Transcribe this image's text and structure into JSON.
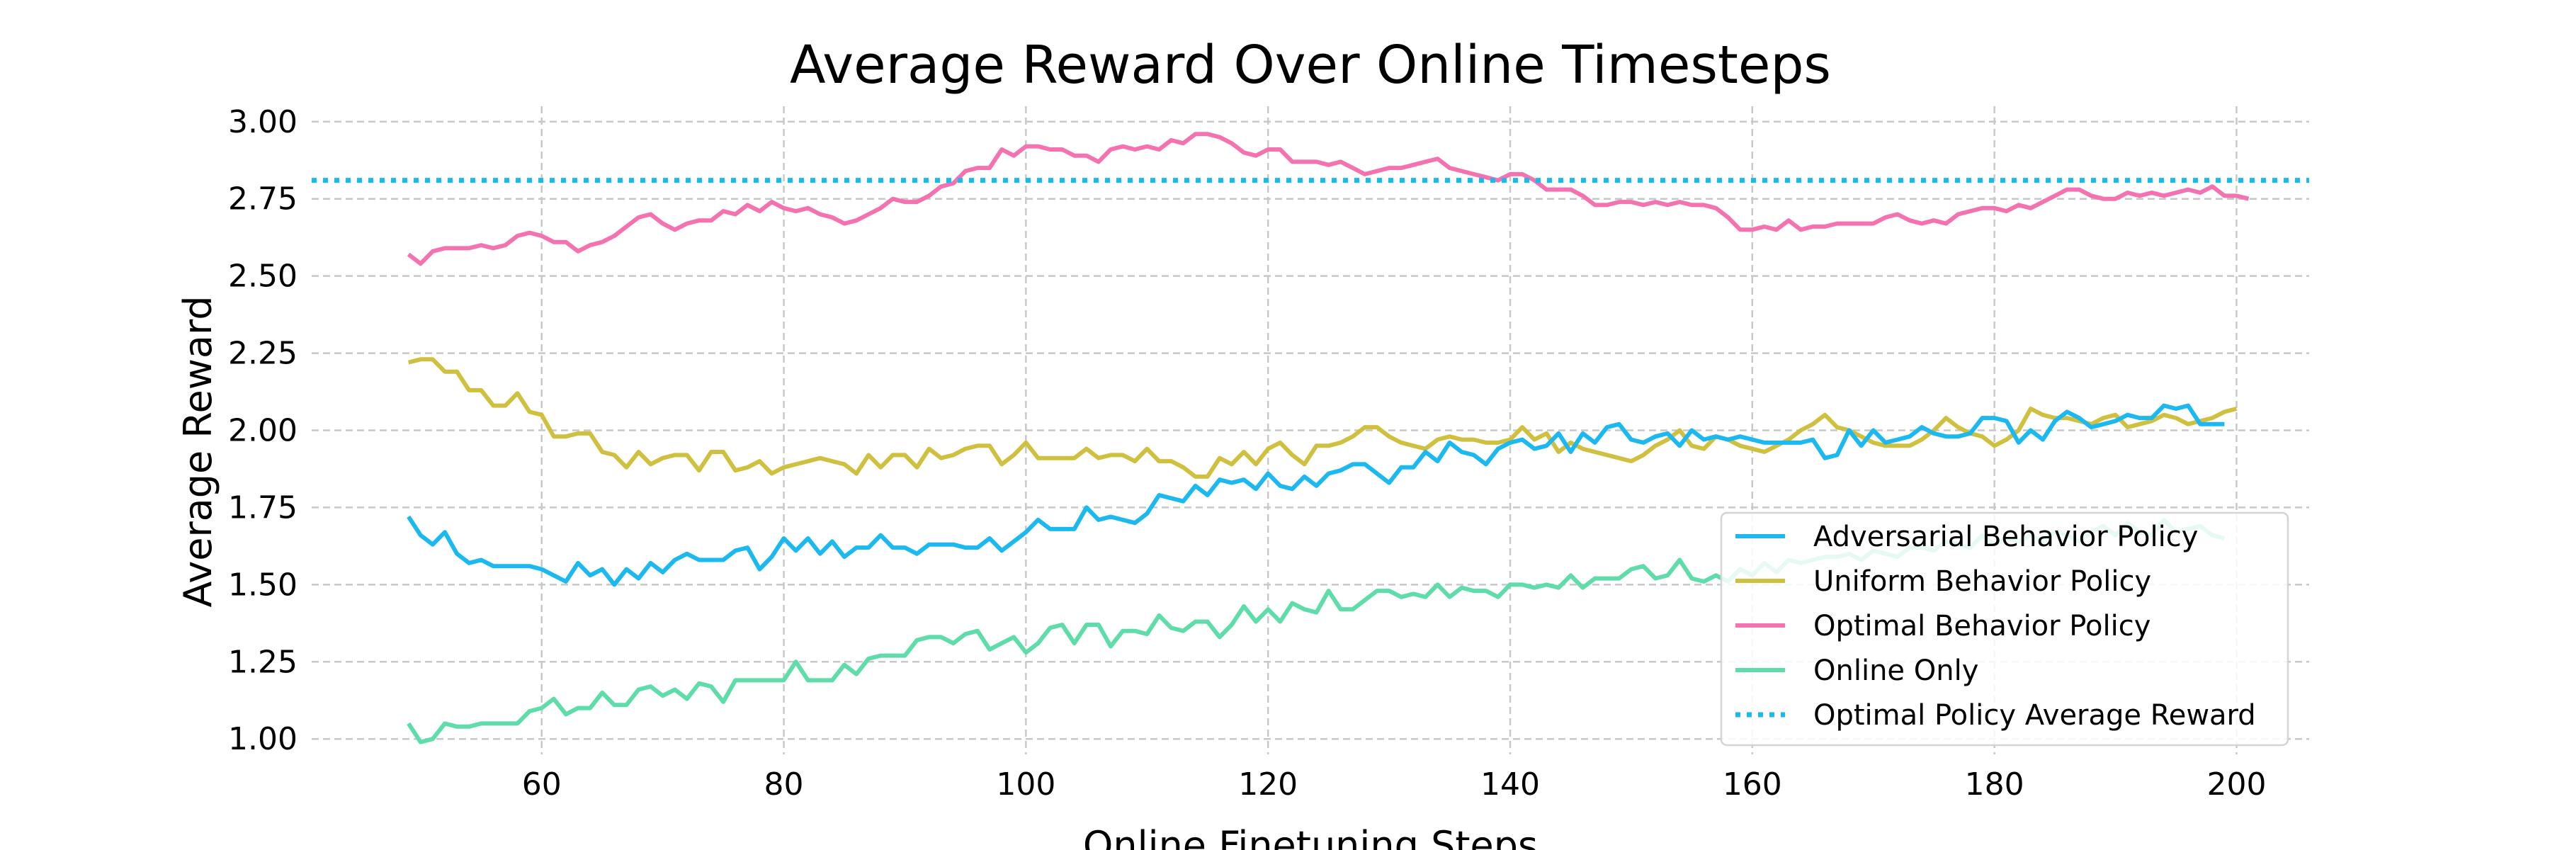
{
  "chart_data": {
    "type": "line",
    "title": "Average Reward Over Online Timesteps",
    "xlabel": "Online Finetuning Steps",
    "ylabel": "Average Reward",
    "xlim": [
      41,
      206
    ],
    "ylim": [
      0.95,
      3.05
    ],
    "xticks": [
      60,
      80,
      100,
      120,
      140,
      160,
      180,
      200
    ],
    "yticks": [
      1.0,
      1.25,
      1.5,
      1.75,
      2.0,
      2.25,
      2.5,
      2.75,
      3.0
    ],
    "ytick_labels": [
      "1.00",
      "1.25",
      "1.50",
      "1.75",
      "2.00",
      "2.25",
      "2.50",
      "2.75",
      "3.00"
    ],
    "grid": true,
    "legend_position": "lower-right",
    "x_start": 49,
    "x_step": 1,
    "series": [
      {
        "name": "Adversarial Behavior Policy",
        "color": "#1cb8f0",
        "style": "solid",
        "values": [
          1.72,
          1.66,
          1.63,
          1.67,
          1.6,
          1.57,
          1.58,
          1.56,
          1.56,
          1.56,
          1.56,
          1.55,
          1.53,
          1.51,
          1.57,
          1.53,
          1.55,
          1.5,
          1.55,
          1.52,
          1.57,
          1.54,
          1.58,
          1.6,
          1.58,
          1.58,
          1.58,
          1.61,
          1.62,
          1.55,
          1.59,
          1.65,
          1.61,
          1.65,
          1.6,
          1.64,
          1.59,
          1.62,
          1.62,
          1.66,
          1.62,
          1.62,
          1.6,
          1.63,
          1.63,
          1.63,
          1.62,
          1.62,
          1.65,
          1.61,
          1.64,
          1.67,
          1.71,
          1.68,
          1.68,
          1.68,
          1.75,
          1.71,
          1.72,
          1.71,
          1.7,
          1.73,
          1.79,
          1.78,
          1.77,
          1.82,
          1.79,
          1.84,
          1.83,
          1.84,
          1.81,
          1.86,
          1.82,
          1.81,
          1.85,
          1.82,
          1.86,
          1.87,
          1.89,
          1.89,
          1.86,
          1.83,
          1.88,
          1.88,
          1.93,
          1.9,
          1.96,
          1.93,
          1.92,
          1.89,
          1.94,
          1.96,
          1.97,
          1.94,
          1.95,
          1.99,
          1.93,
          1.99,
          1.96,
          2.01,
          2.02,
          1.97,
          1.96,
          1.98,
          1.99,
          1.95,
          2.0,
          1.97,
          1.98,
          1.97,
          1.98,
          1.97,
          1.96,
          1.96,
          1.96,
          1.96,
          1.97,
          1.91,
          1.92,
          2.0,
          1.95,
          2.0,
          1.96,
          1.97,
          1.98,
          2.01,
          1.99,
          1.98,
          1.98,
          1.99,
          2.04,
          2.04,
          2.03,
          1.96,
          2.0,
          1.97,
          2.03,
          2.06,
          2.04,
          2.01,
          2.02,
          2.03,
          2.05,
          2.04,
          2.04,
          2.08,
          2.07,
          2.08,
          2.02,
          2.02,
          2.02
        ]
      },
      {
        "name": "Uniform Behavior Policy",
        "color": "#d0c040",
        "style": "solid",
        "values": [
          2.22,
          2.23,
          2.23,
          2.19,
          2.19,
          2.13,
          2.13,
          2.08,
          2.08,
          2.12,
          2.06,
          2.05,
          1.98,
          1.98,
          1.99,
          1.99,
          1.93,
          1.92,
          1.88,
          1.93,
          1.89,
          1.91,
          1.92,
          1.92,
          1.87,
          1.93,
          1.93,
          1.87,
          1.88,
          1.9,
          1.86,
          1.88,
          1.89,
          1.9,
          1.91,
          1.9,
          1.89,
          1.86,
          1.92,
          1.88,
          1.92,
          1.92,
          1.88,
          1.94,
          1.91,
          1.92,
          1.94,
          1.95,
          1.95,
          1.89,
          1.92,
          1.96,
          1.91,
          1.91,
          1.91,
          1.91,
          1.94,
          1.91,
          1.92,
          1.92,
          1.9,
          1.94,
          1.9,
          1.9,
          1.88,
          1.85,
          1.85,
          1.91,
          1.89,
          1.93,
          1.89,
          1.94,
          1.96,
          1.92,
          1.89,
          1.95,
          1.95,
          1.96,
          1.98,
          2.01,
          2.01,
          1.98,
          1.96,
          1.95,
          1.94,
          1.97,
          1.98,
          1.97,
          1.97,
          1.96,
          1.96,
          1.97,
          2.01,
          1.97,
          1.99,
          1.93,
          1.96,
          1.94,
          1.93,
          1.92,
          1.91,
          1.9,
          1.92,
          1.95,
          1.97,
          2.0,
          1.95,
          1.94,
          1.98,
          1.97,
          1.95,
          1.94,
          1.93,
          1.95,
          1.97,
          2.0,
          2.02,
          2.05,
          2.01,
          2.0,
          1.98,
          1.96,
          1.95,
          1.95,
          1.95,
          1.97,
          2.0,
          2.04,
          2.01,
          1.99,
          1.98,
          1.95,
          1.97,
          2.0,
          2.07,
          2.05,
          2.04,
          2.04,
          2.03,
          2.02,
          2.04,
          2.05,
          2.01,
          2.02,
          2.03,
          2.05,
          2.04,
          2.02,
          2.03,
          2.04,
          2.06,
          2.07
        ]
      },
      {
        "name": "Optimal Behavior Policy",
        "color": "#f472b0",
        "style": "solid",
        "values": [
          2.57,
          2.54,
          2.58,
          2.59,
          2.59,
          2.59,
          2.6,
          2.59,
          2.6,
          2.63,
          2.64,
          2.63,
          2.61,
          2.61,
          2.58,
          2.6,
          2.61,
          2.63,
          2.66,
          2.69,
          2.7,
          2.67,
          2.65,
          2.67,
          2.68,
          2.68,
          2.71,
          2.7,
          2.73,
          2.71,
          2.74,
          2.72,
          2.71,
          2.72,
          2.7,
          2.69,
          2.67,
          2.68,
          2.7,
          2.72,
          2.75,
          2.74,
          2.74,
          2.76,
          2.79,
          2.8,
          2.84,
          2.85,
          2.85,
          2.91,
          2.89,
          2.92,
          2.92,
          2.91,
          2.91,
          2.89,
          2.89,
          2.87,
          2.91,
          2.92,
          2.91,
          2.92,
          2.91,
          2.94,
          2.93,
          2.96,
          2.96,
          2.95,
          2.93,
          2.9,
          2.89,
          2.91,
          2.91,
          2.87,
          2.87,
          2.87,
          2.86,
          2.87,
          2.85,
          2.83,
          2.84,
          2.85,
          2.85,
          2.86,
          2.87,
          2.88,
          2.85,
          2.84,
          2.83,
          2.82,
          2.81,
          2.83,
          2.83,
          2.81,
          2.78,
          2.78,
          2.78,
          2.76,
          2.73,
          2.73,
          2.74,
          2.74,
          2.73,
          2.74,
          2.73,
          2.74,
          2.73,
          2.73,
          2.72,
          2.69,
          2.65,
          2.65,
          2.66,
          2.65,
          2.68,
          2.65,
          2.66,
          2.66,
          2.67,
          2.67,
          2.67,
          2.67,
          2.69,
          2.7,
          2.68,
          2.67,
          2.68,
          2.67,
          2.7,
          2.71,
          2.72,
          2.72,
          2.71,
          2.73,
          2.72,
          2.74,
          2.76,
          2.78,
          2.78,
          2.76,
          2.75,
          2.75,
          2.77,
          2.76,
          2.77,
          2.76,
          2.77,
          2.78,
          2.77,
          2.79,
          2.76,
          2.76,
          2.75
        ]
      },
      {
        "name": "Online Only",
        "color": "#5edcaa",
        "style": "solid",
        "values": [
          1.05,
          0.99,
          1.0,
          1.05,
          1.04,
          1.04,
          1.05,
          1.05,
          1.05,
          1.05,
          1.09,
          1.1,
          1.13,
          1.08,
          1.1,
          1.1,
          1.15,
          1.11,
          1.11,
          1.16,
          1.17,
          1.14,
          1.16,
          1.13,
          1.18,
          1.17,
          1.12,
          1.19,
          1.19,
          1.19,
          1.19,
          1.19,
          1.25,
          1.19,
          1.19,
          1.19,
          1.24,
          1.21,
          1.26,
          1.27,
          1.27,
          1.27,
          1.32,
          1.33,
          1.33,
          1.31,
          1.34,
          1.35,
          1.29,
          1.31,
          1.33,
          1.28,
          1.31,
          1.36,
          1.37,
          1.31,
          1.37,
          1.37,
          1.3,
          1.35,
          1.35,
          1.34,
          1.4,
          1.36,
          1.35,
          1.38,
          1.38,
          1.33,
          1.37,
          1.43,
          1.38,
          1.42,
          1.38,
          1.44,
          1.42,
          1.41,
          1.48,
          1.42,
          1.42,
          1.45,
          1.48,
          1.48,
          1.46,
          1.47,
          1.46,
          1.5,
          1.46,
          1.49,
          1.48,
          1.48,
          1.46,
          1.5,
          1.5,
          1.49,
          1.5,
          1.49,
          1.53,
          1.49,
          1.52,
          1.52,
          1.52,
          1.55,
          1.56,
          1.52,
          1.53,
          1.58,
          1.52,
          1.51,
          1.53,
          1.51,
          1.55,
          1.53,
          1.57,
          1.54,
          1.58,
          1.57,
          1.58,
          1.59,
          1.59,
          1.6,
          1.58,
          1.61,
          1.6,
          1.59,
          1.62,
          1.62,
          1.61,
          1.64,
          1.63,
          1.62,
          1.66,
          1.63,
          1.65,
          1.64,
          1.66,
          1.64,
          1.67,
          1.66,
          1.64,
          1.67,
          1.69,
          1.66,
          1.7,
          1.67,
          1.66,
          1.71,
          1.67,
          1.68,
          1.69,
          1.66,
          1.65
        ]
      },
      {
        "name": "Optimal Policy Average Reward",
        "color": "#19b9f2",
        "style": "dotted",
        "constant": 2.81
      }
    ]
  }
}
